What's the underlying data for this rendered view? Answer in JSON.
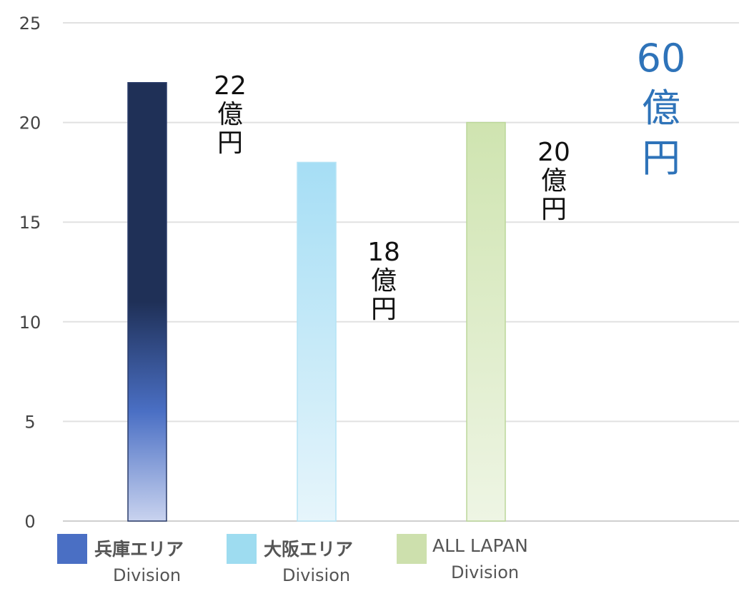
{
  "chart_data": {
    "type": "bar",
    "categories": [
      "兵庫エリア Division",
      "大阪エリア Division",
      "ALL LAPAN Division"
    ],
    "series": [
      {
        "values": [
          22,
          18,
          20
        ]
      }
    ],
    "ylim": [
      0,
      25
    ],
    "yticks": [
      0,
      5,
      10,
      15,
      20,
      25
    ],
    "grid": true,
    "bar_colors": [
      "#1f3057",
      "#a6def5",
      "#cfe4b0"
    ],
    "data_labels": [
      [
        "22",
        "億",
        "円"
      ],
      [
        "18",
        "億",
        "円"
      ],
      [
        "20",
        "億",
        "円"
      ]
    ],
    "total_annotation": [
      "60",
      "億",
      "円"
    ],
    "total_color": "#2e73b9",
    "legend": [
      {
        "name": "兵庫エリア",
        "sub": "Division",
        "color": "#4a6fc4"
      },
      {
        "name": "大阪エリア",
        "sub": "Division",
        "color": "#9edcf0"
      },
      {
        "name": "ALL LAPAN",
        "sub": "Division",
        "color": "#cde0ad"
      }
    ],
    "legend_placement": "bottom"
  }
}
